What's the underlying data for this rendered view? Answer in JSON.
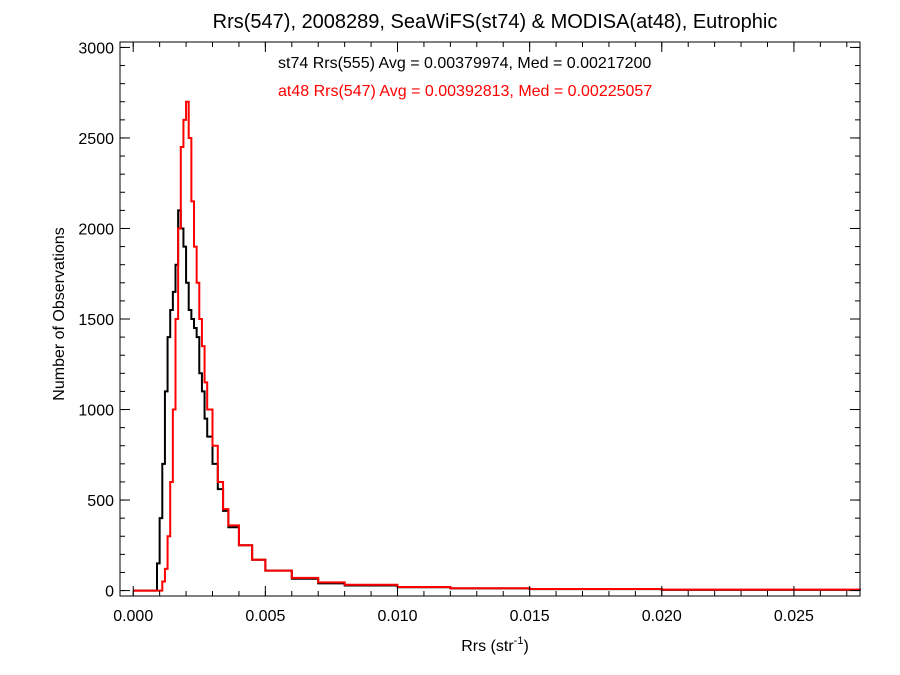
{
  "chart_data": {
    "type": "line",
    "subtype": "step-histogram",
    "title": "Rrs(547), 2008289, SeaWiFS(st74) & MODISA(at48), Eutrophic",
    "xlabel": "Rrs (str",
    "xlabel_sup": "-1",
    "xlabel_end": ")",
    "ylabel": "Number of Observations",
    "xlim": [
      -0.0005,
      0.0275
    ],
    "ylim": [
      -30,
      3030
    ],
    "x_ticks": [
      0.0,
      0.005,
      0.01,
      0.015,
      0.02,
      0.025
    ],
    "x_tick_labels": [
      "0.000",
      "0.005",
      "0.010",
      "0.015",
      "0.020",
      "0.025"
    ],
    "y_ticks": [
      0,
      500,
      1000,
      1500,
      2000,
      2500,
      3000
    ],
    "y_tick_labels": [
      "0",
      "500",
      "1000",
      "1500",
      "2000",
      "2500",
      "3000"
    ],
    "grid": false,
    "legend_placement": "top-center",
    "series": [
      {
        "name": "st74 Rrs(555) Avg = 0.00379974, Med = 0.00217200",
        "color": "#000000",
        "points": [
          [
            0.0,
            0
          ],
          [
            0.0008,
            0
          ],
          [
            0.0009,
            150
          ],
          [
            0.001,
            400
          ],
          [
            0.0011,
            700
          ],
          [
            0.0012,
            1100
          ],
          [
            0.0013,
            1400
          ],
          [
            0.0014,
            1550
          ],
          [
            0.0015,
            1650
          ],
          [
            0.0016,
            1800
          ],
          [
            0.0017,
            2100
          ],
          [
            0.0018,
            2000
          ],
          [
            0.0019,
            1900
          ],
          [
            0.002,
            1700
          ],
          [
            0.0021,
            1550
          ],
          [
            0.0022,
            1500
          ],
          [
            0.0023,
            1450
          ],
          [
            0.0024,
            1400
          ],
          [
            0.0025,
            1200
          ],
          [
            0.0026,
            1100
          ],
          [
            0.0027,
            950
          ],
          [
            0.0028,
            850
          ],
          [
            0.003,
            700
          ],
          [
            0.0032,
            560
          ],
          [
            0.0034,
            440
          ],
          [
            0.0036,
            350
          ],
          [
            0.004,
            250
          ],
          [
            0.0045,
            170
          ],
          [
            0.005,
            110
          ],
          [
            0.006,
            65
          ],
          [
            0.007,
            40
          ],
          [
            0.008,
            28
          ],
          [
            0.01,
            18
          ],
          [
            0.012,
            12
          ],
          [
            0.015,
            8
          ],
          [
            0.02,
            4
          ],
          [
            0.0275,
            2
          ]
        ]
      },
      {
        "name": "at48 Rrs(547) Avg = 0.00392813, Med = 0.00225057",
        "color": "#ff0000",
        "points": [
          [
            0.0,
            0
          ],
          [
            0.001,
            0
          ],
          [
            0.0011,
            50
          ],
          [
            0.0012,
            120
          ],
          [
            0.0013,
            300
          ],
          [
            0.0014,
            600
          ],
          [
            0.0015,
            1000
          ],
          [
            0.0016,
            1500
          ],
          [
            0.0017,
            2000
          ],
          [
            0.0018,
            2450
          ],
          [
            0.0019,
            2600
          ],
          [
            0.002,
            2700
          ],
          [
            0.0021,
            2500
          ],
          [
            0.0022,
            2150
          ],
          [
            0.0023,
            1900
          ],
          [
            0.0024,
            1700
          ],
          [
            0.0025,
            1500
          ],
          [
            0.0026,
            1350
          ],
          [
            0.0027,
            1150
          ],
          [
            0.0028,
            1000
          ],
          [
            0.003,
            800
          ],
          [
            0.0032,
            600
          ],
          [
            0.0034,
            450
          ],
          [
            0.0036,
            360
          ],
          [
            0.004,
            250
          ],
          [
            0.0045,
            170
          ],
          [
            0.005,
            110
          ],
          [
            0.006,
            70
          ],
          [
            0.007,
            45
          ],
          [
            0.008,
            32
          ],
          [
            0.01,
            20
          ],
          [
            0.012,
            13
          ],
          [
            0.015,
            9
          ],
          [
            0.02,
            5
          ],
          [
            0.0275,
            3
          ]
        ]
      }
    ]
  }
}
